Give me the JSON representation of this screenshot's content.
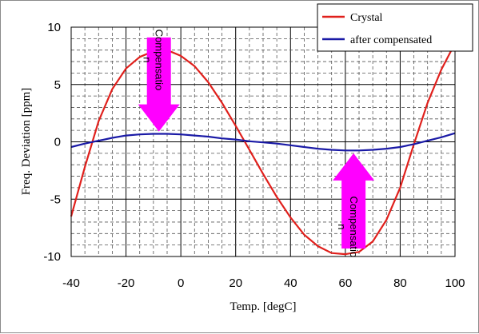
{
  "chart_data": {
    "type": "line",
    "title": "",
    "xlabel": "Temp. [degC]",
    "ylabel": "Freq. Deviation [ppm]",
    "xlim": [
      -40,
      100
    ],
    "ylim": [
      -10,
      10
    ],
    "xticks": [
      -40,
      -20,
      0,
      20,
      40,
      60,
      80,
      100
    ],
    "yticks": [
      -10,
      -5,
      0,
      5,
      10
    ],
    "x_tick_labels": [
      "-40",
      "-20",
      "0",
      "20",
      "40",
      "60",
      "80",
      "100"
    ],
    "y_tick_labels": [
      "-10",
      "-5",
      "0",
      "5",
      "10"
    ],
    "grid": true,
    "legend_position": "top-right",
    "series": [
      {
        "name": "Crystal",
        "color": "#e0201c",
        "x": [
          -40,
          -35,
          -30,
          -25,
          -20,
          -15,
          -10,
          -5,
          0,
          5,
          10,
          15,
          20,
          25,
          30,
          35,
          40,
          45,
          50,
          55,
          60,
          65,
          70,
          75,
          80,
          85,
          90,
          95,
          100
        ],
        "y": [
          -6.5,
          -2.2,
          1.8,
          4.6,
          6.4,
          7.4,
          7.9,
          8.0,
          7.5,
          6.6,
          5.2,
          3.4,
          1.4,
          -0.7,
          -2.8,
          -4.8,
          -6.6,
          -8.1,
          -9.1,
          -9.7,
          -9.8,
          -9.6,
          -8.7,
          -6.8,
          -4.0,
          -0.2,
          3.4,
          6.3,
          8.6
        ]
      },
      {
        "name": "after compensated",
        "color": "#1a1aa6",
        "x": [
          -40,
          -35,
          -30,
          -25,
          -20,
          -15,
          -10,
          -5,
          0,
          5,
          10,
          15,
          20,
          25,
          30,
          35,
          40,
          45,
          50,
          55,
          60,
          65,
          70,
          75,
          80,
          85,
          90,
          95,
          100
        ],
        "y": [
          -0.45,
          -0.15,
          0.1,
          0.35,
          0.55,
          0.65,
          0.7,
          0.7,
          0.65,
          0.55,
          0.45,
          0.3,
          0.2,
          0.05,
          -0.05,
          -0.15,
          -0.3,
          -0.45,
          -0.6,
          -0.7,
          -0.75,
          -0.75,
          -0.7,
          -0.6,
          -0.45,
          -0.2,
          0.1,
          0.4,
          0.75
        ]
      }
    ],
    "annotations": [
      {
        "text": "Compensatio\nn",
        "direction": "down",
        "color": "#ff00ff",
        "x": -8,
        "y_from": 9.1,
        "y_to": 0.9
      },
      {
        "text": "Compensatio\nn",
        "direction": "up",
        "color": "#ff00ff",
        "x": 63,
        "y_from": -9.3,
        "y_to": -1.0
      }
    ]
  }
}
